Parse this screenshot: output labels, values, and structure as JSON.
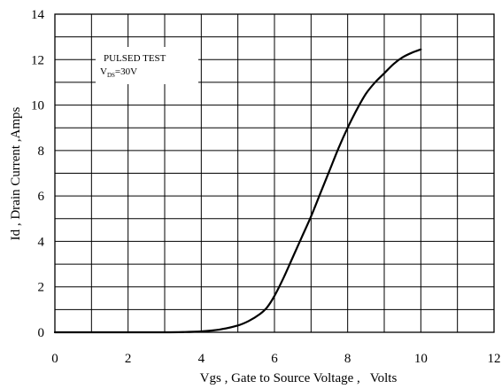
{
  "chart_data": {
    "type": "line",
    "title": "",
    "xlabel": "Vgs , Gate to Source Voltage ,   Volts",
    "ylabel": "Id , Drain Current ,Amps",
    "xlim": [
      0,
      12
    ],
    "ylim": [
      0,
      14
    ],
    "x_ticks": [
      "0",
      "2",
      "4",
      "6",
      "8",
      "10",
      "12"
    ],
    "y_ticks": [
      "0",
      "2",
      "4",
      "6",
      "8",
      "10",
      "12",
      "14"
    ],
    "grid": true,
    "grid_x_step": 1,
    "grid_y_step": 1,
    "line_color": "#000000",
    "annotation": {
      "line1": "PULSED    TEST",
      "line2_prefix": "V",
      "line2_sub": "DS",
      "line2_suffix": "=30V"
    },
    "series": [
      {
        "x": [
          0,
          1,
          2,
          3,
          3.5,
          4,
          4.5,
          5,
          5.3,
          5.6,
          5.8,
          6,
          6.25,
          6.5,
          6.75,
          7,
          7.25,
          7.5,
          7.75,
          8,
          8.25,
          8.5,
          8.75,
          9,
          9.25,
          9.5,
          9.75,
          10
        ],
        "y": [
          0,
          0,
          0,
          0,
          0.01,
          0.04,
          0.12,
          0.3,
          0.5,
          0.8,
          1.1,
          1.6,
          2.4,
          3.3,
          4.2,
          5.1,
          6.1,
          7.1,
          8.1,
          9.0,
          9.8,
          10.5,
          11.0,
          11.4,
          11.8,
          12.1,
          12.3,
          12.45
        ]
      }
    ]
  }
}
